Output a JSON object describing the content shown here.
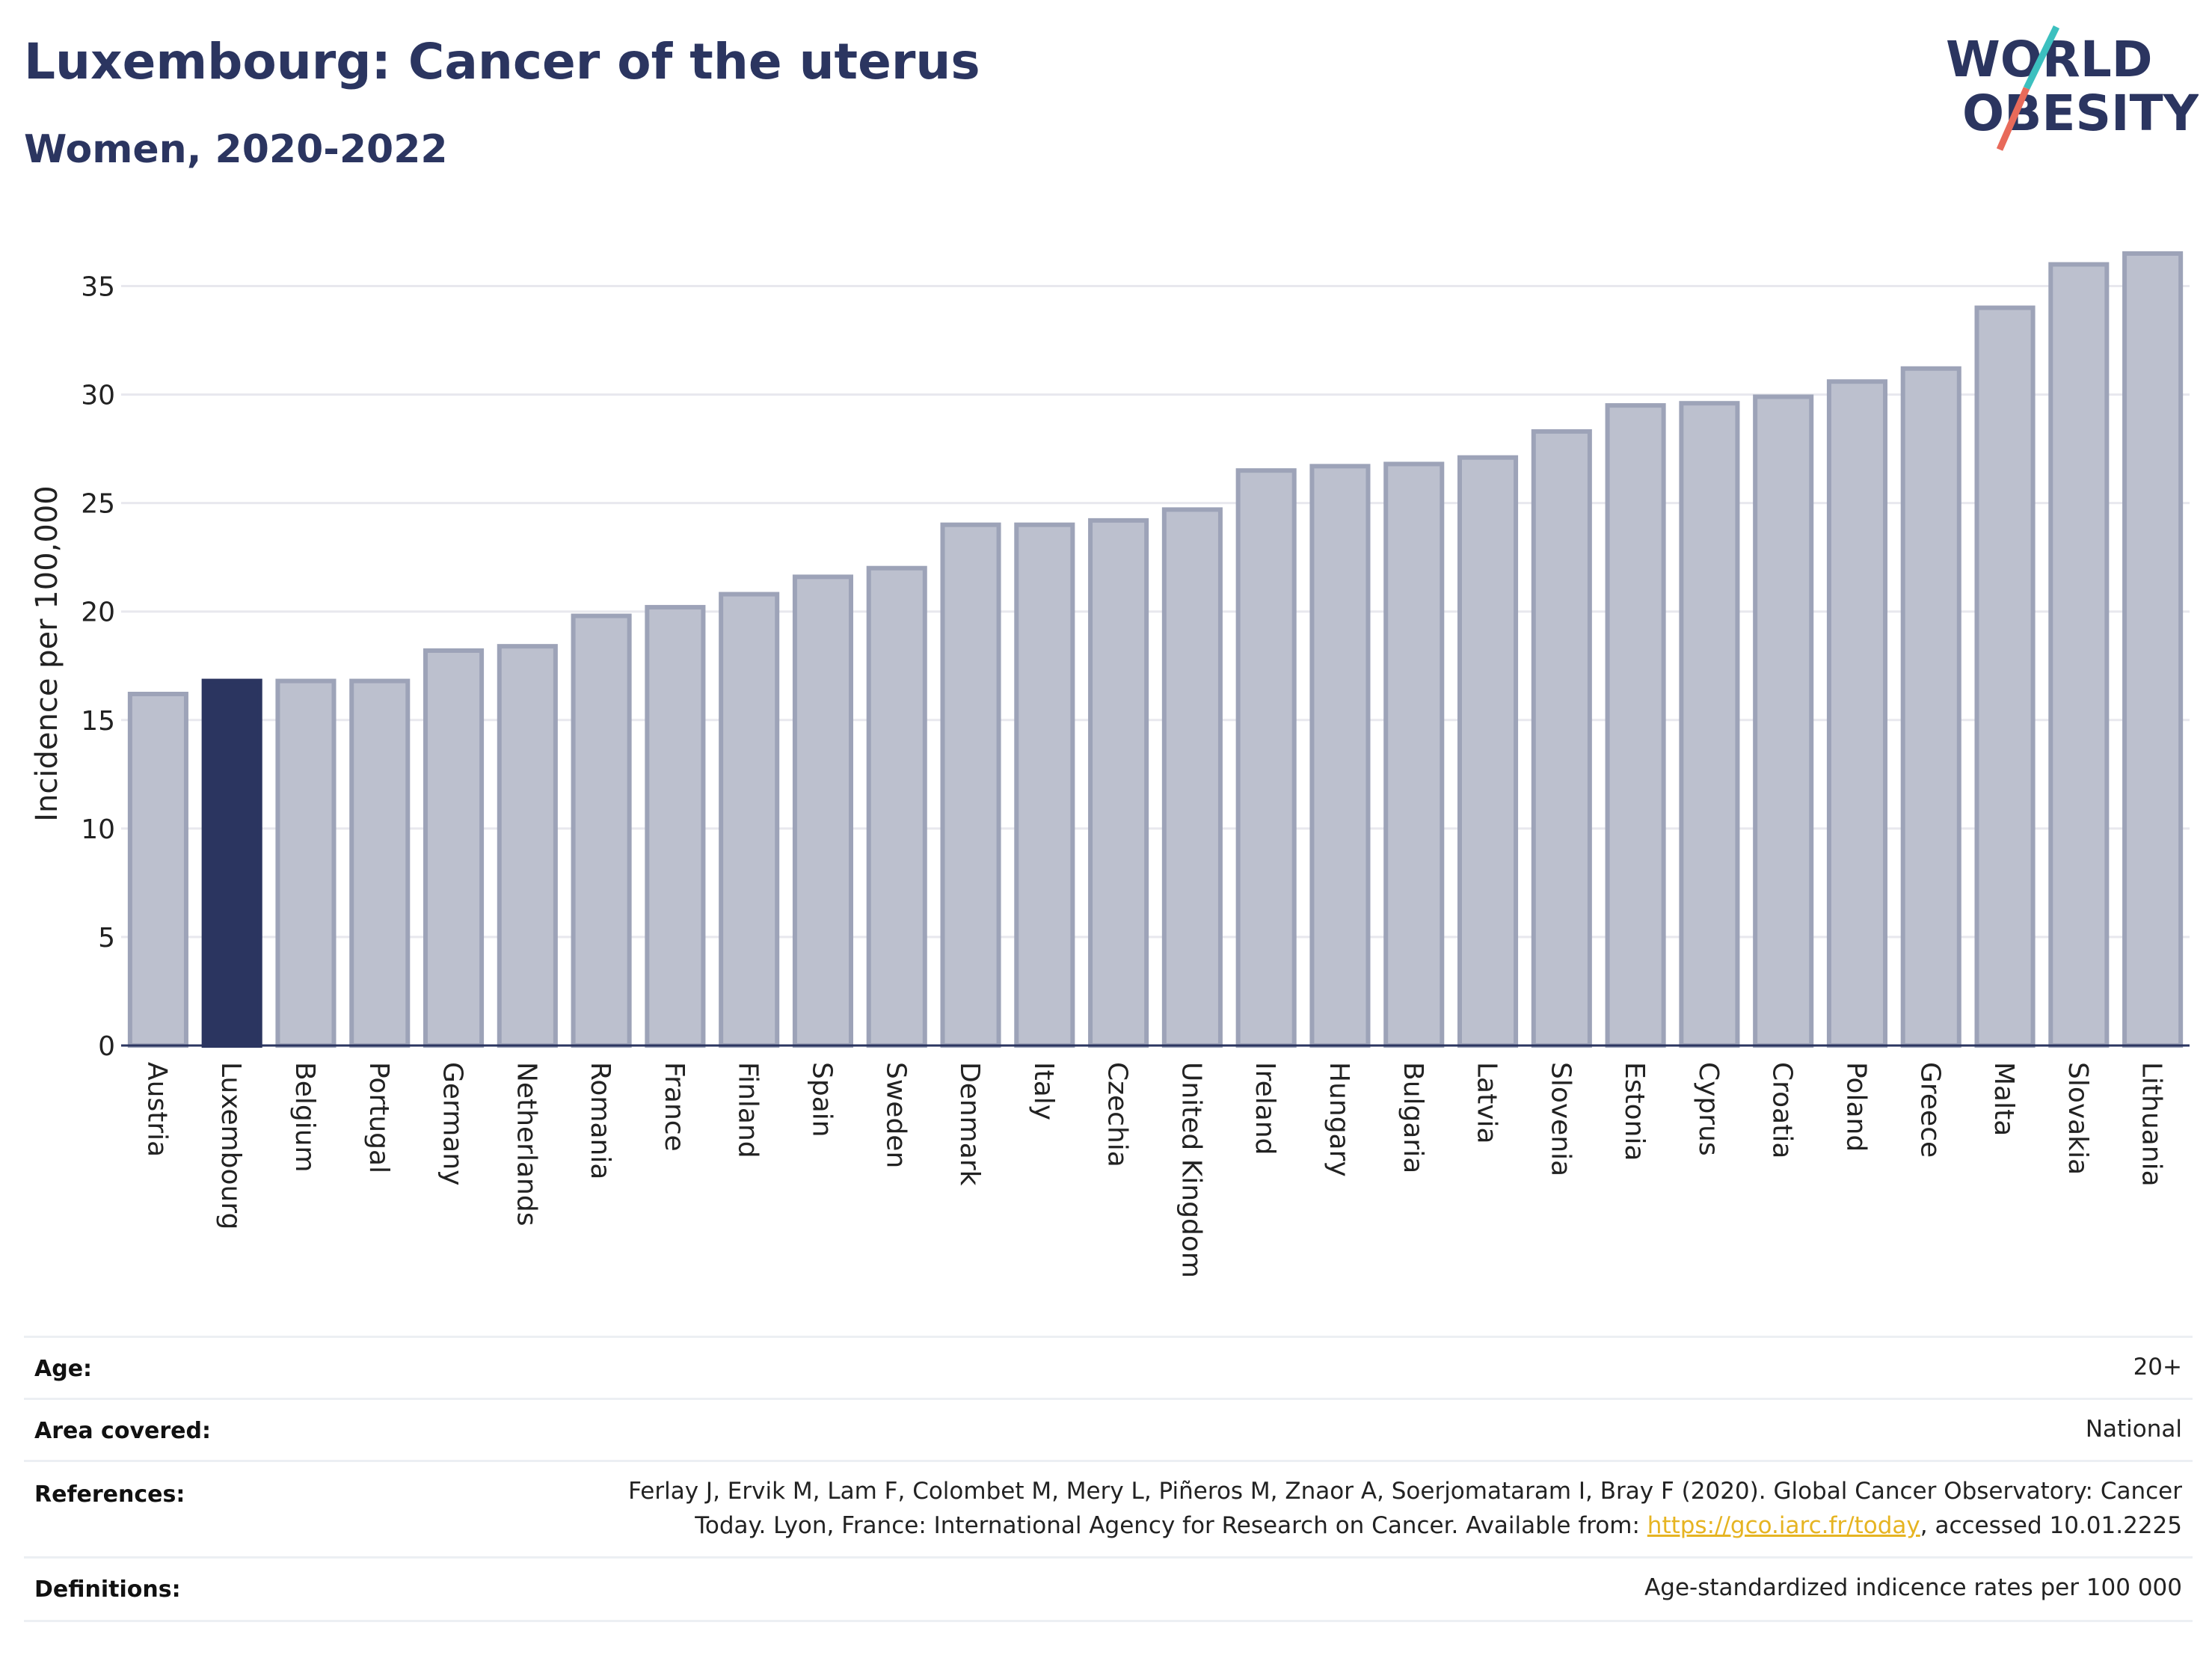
{
  "header": {
    "title": "Luxembourg: Cancer of the uterus",
    "subtitle": "Women, 2020-2022",
    "logo": {
      "line1": "WORLD",
      "line2": "OBESITY"
    }
  },
  "colors": {
    "highlight": "#2b3560",
    "bar": "#bcc0ce",
    "bar_border": "#9da3b8",
    "grid": "#e8e8ee",
    "title": "#2b3560",
    "link": "#e6b422",
    "logo_teal": "#3cc0bf",
    "logo_coral": "#e86a5a"
  },
  "chart_data": {
    "type": "bar",
    "ylabel": "Incidence per 100,000",
    "xlabel": "",
    "ylim": [
      0,
      37.5
    ],
    "yticks": [
      0,
      5,
      10,
      15,
      20,
      25,
      30,
      35
    ],
    "grid": true,
    "highlight_category": "Luxembourg",
    "categories": [
      "Austria",
      "Luxembourg",
      "Belgium",
      "Portugal",
      "Germany",
      "Netherlands",
      "Romania",
      "France",
      "Finland",
      "Spain",
      "Sweden",
      "Denmark",
      "Italy",
      "Czechia",
      "United Kingdom",
      "Ireland",
      "Hungary",
      "Bulgaria",
      "Latvia",
      "Slovenia",
      "Estonia",
      "Cyprus",
      "Croatia",
      "Poland",
      "Greece",
      "Malta",
      "Slovakia",
      "Lithuania"
    ],
    "values": [
      16.2,
      16.8,
      16.8,
      16.8,
      18.2,
      18.4,
      19.8,
      20.2,
      20.8,
      21.6,
      22.0,
      24.0,
      24.0,
      24.2,
      24.7,
      26.5,
      26.7,
      26.8,
      27.1,
      28.3,
      29.5,
      29.6,
      29.9,
      30.6,
      31.2,
      34.0,
      36.0,
      36.5
    ]
  },
  "info": {
    "age_label": "Age:",
    "age_value": "20+",
    "area_label": "Area covered:",
    "area_value": "National",
    "references_label": "References:",
    "references_line1": "Ferlay J, Ervik M, Lam F, Colombet M, Mery L, Piñeros M, Znaor A, Soerjomataram I, Bray F (2020). Global Cancer Observatory: Cancer",
    "references_line2_pre": "Today. Lyon, France: International Agency for Research on Cancer. Available from: ",
    "references_link": "https://gco.iarc.fr/today",
    "references_line2_post": ", accessed 10.01.2225",
    "definitions_label": "Definitions:",
    "definitions_value": "Age-standardized indicence rates per 100 000"
  }
}
